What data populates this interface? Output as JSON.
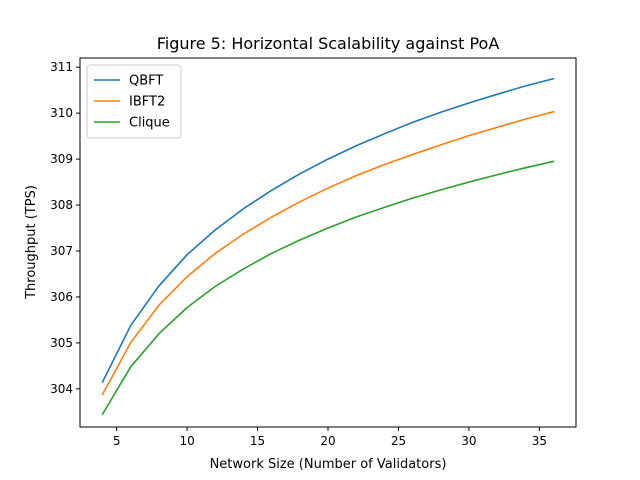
{
  "chart_data": {
    "type": "line",
    "title": "Figure 5: Horizontal Scalability against PoA",
    "xlabel": "Network Size (Number of Validators)",
    "ylabel": "Throughput (TPS)",
    "xlim": [
      2.4,
      37.6
    ],
    "ylim": [
      303.17,
      311.2
    ],
    "xticks": [
      5,
      10,
      15,
      20,
      25,
      30,
      35
    ],
    "yticks": [
      304,
      305,
      306,
      307,
      308,
      309,
      310,
      311
    ],
    "grid": false,
    "legend_position": "top-left",
    "x": [
      4,
      6,
      8,
      10,
      12,
      14,
      16,
      18,
      20,
      22,
      24,
      26,
      28,
      30,
      32,
      34,
      36
    ],
    "series": [
      {
        "name": "QBFT",
        "color": "#1f77b4",
        "values": [
          304.15,
          305.38,
          306.24,
          306.92,
          307.46,
          307.92,
          308.32,
          308.68,
          309.0,
          309.29,
          309.55,
          309.8,
          310.02,
          310.22,
          310.41,
          310.59,
          310.75
        ]
      },
      {
        "name": "IBFT2",
        "color": "#ff7f0e",
        "values": [
          303.88,
          305.01,
          305.82,
          306.44,
          306.95,
          307.37,
          307.74,
          308.07,
          308.37,
          308.64,
          308.88,
          309.1,
          309.31,
          309.51,
          309.69,
          309.87,
          310.03
        ]
      },
      {
        "name": "Clique",
        "color": "#2ca02c",
        "values": [
          303.45,
          304.48,
          305.2,
          305.77,
          306.23,
          306.61,
          306.95,
          307.24,
          307.5,
          307.74,
          307.95,
          308.15,
          308.33,
          308.5,
          308.66,
          308.81,
          308.95
        ]
      }
    ]
  }
}
